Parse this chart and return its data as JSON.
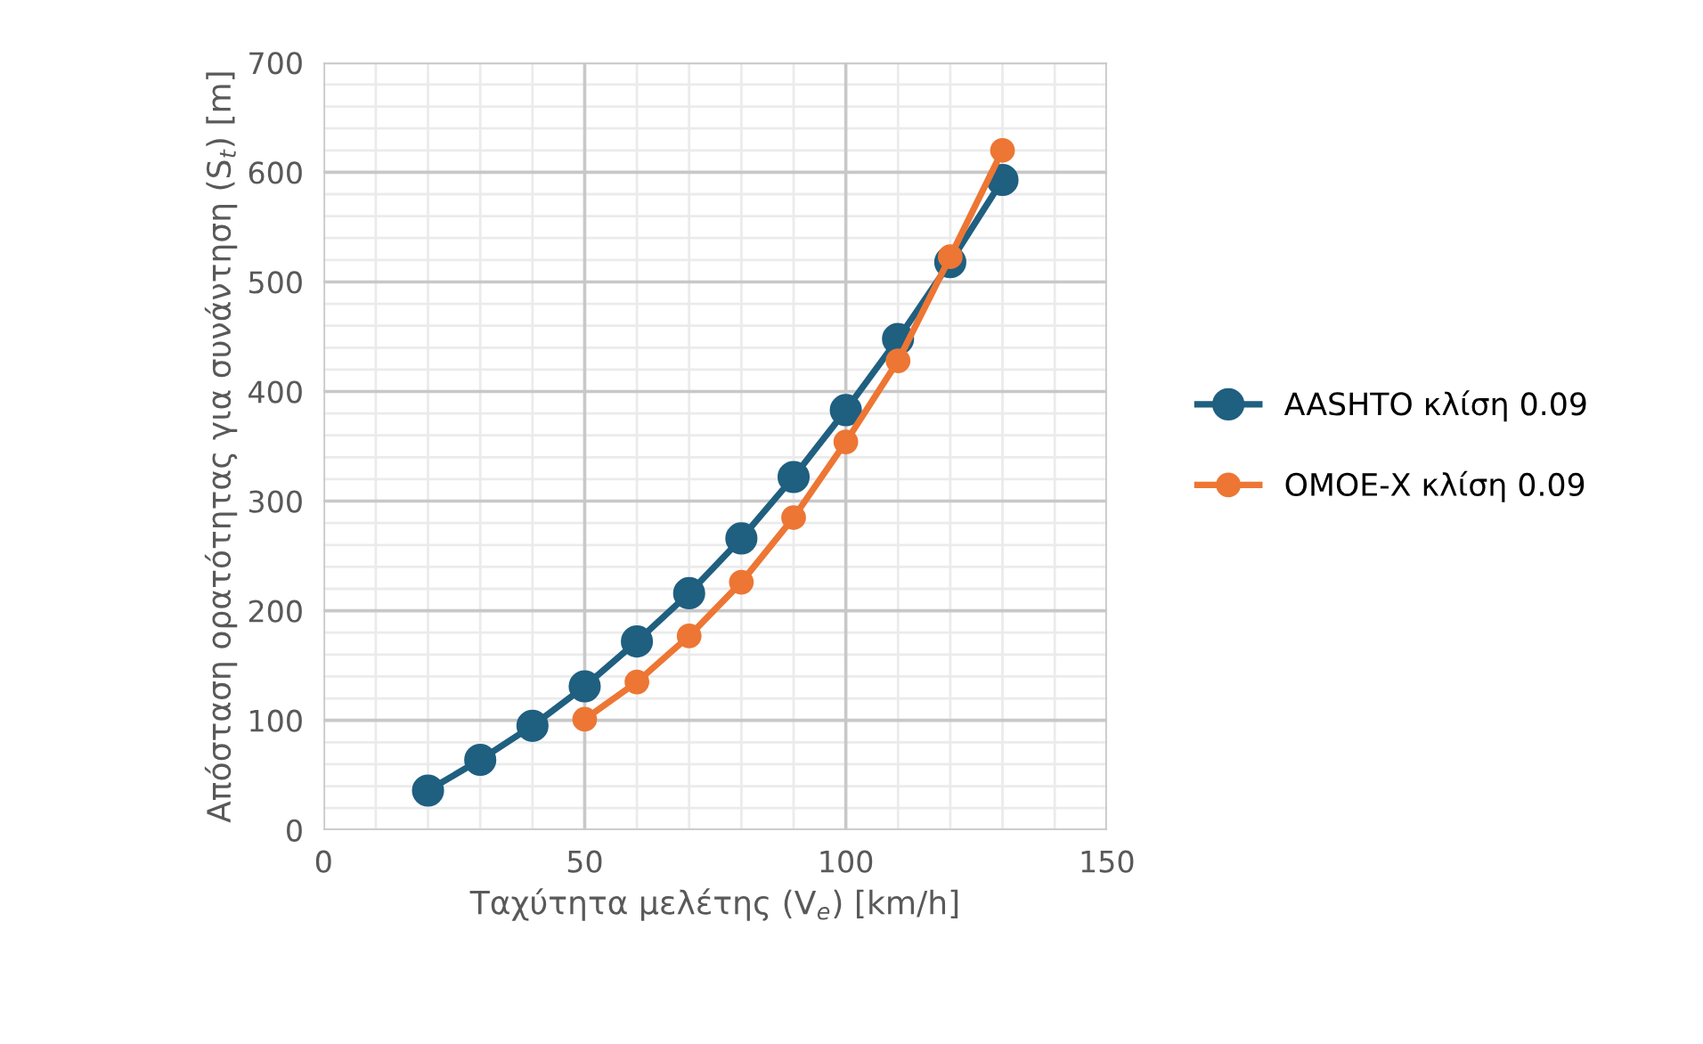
{
  "chart_data": {
    "type": "line",
    "xlabel": "Ταχύτητα μελέτης (V$_{e}$) [km/h]",
    "ylabel": "Απόσταση ορατότητας για συνάντηση (S$_{t}$) [m]",
    "series": [
      {
        "name": "AASHTO κλίση 0.09",
        "color": "#1f5f80",
        "x": [
          20,
          30,
          40,
          50,
          60,
          70,
          80,
          90,
          100,
          110,
          120,
          130
        ],
        "values": [
          36,
          64,
          95,
          131,
          172,
          216,
          266,
          322,
          383,
          448,
          518,
          593
        ]
      },
      {
        "name": "ΟΜΟΕ-Χ κλίση 0.09",
        "color": "#ed7634",
        "x": [
          50,
          60,
          70,
          80,
          90,
          100,
          110,
          120,
          130
        ],
        "values": [
          101,
          135,
          177,
          226,
          285,
          354,
          428,
          523,
          620
        ]
      }
    ],
    "xlim": [
      0,
      150
    ],
    "ylim": [
      0,
      700
    ],
    "xticks": [
      0,
      {
        "value": 10,
        "label": null
      },
      {
        "value": 20,
        "label": null
      },
      {
        "value": 30,
        "label": null
      },
      {
        "value": 40,
        "label": null
      },
      50,
      {
        "value": 60,
        "label": null
      },
      {
        "value": 70,
        "label": null
      },
      {
        "value": 80,
        "label": null
      },
      {
        "value": 90,
        "label": null
      },
      100,
      {
        "value": 110,
        "label": null
      },
      {
        "value": 120,
        "label": null
      },
      {
        "value": 130,
        "label": null
      },
      {
        "value": 140,
        "label": null
      },
      150
    ],
    "yticks": [
      0,
      100,
      200,
      300,
      400,
      500,
      600,
      700
    ],
    "grid": true,
    "legend": "right",
    "marker": "circle",
    "line_style": "solid"
  }
}
